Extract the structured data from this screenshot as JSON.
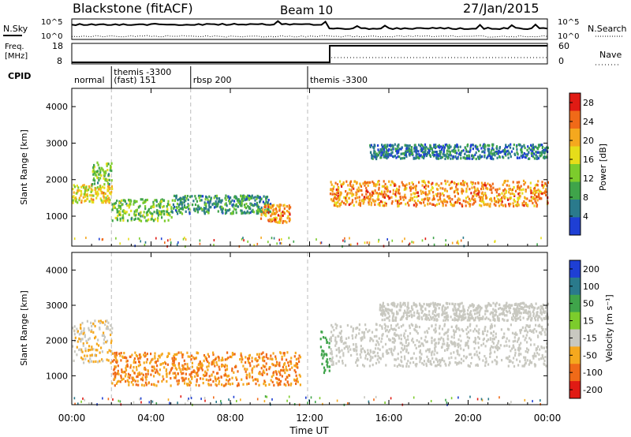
{
  "header": {
    "station": "Blackstone (fitACF)",
    "beam": "Beam 10",
    "date": "27/Jan/2015"
  },
  "noise_panel": {
    "left_label": "N.Sky",
    "right_label": "N.Search",
    "left_ticks": [
      "10^5",
      "10^0"
    ],
    "right_ticks": [
      "10^5",
      "10^0"
    ]
  },
  "freq_panel": {
    "left_label_1": "Freq.",
    "left_label_2": "[MHz]",
    "right_label": "Nave",
    "left_ticks": [
      "18",
      "8"
    ],
    "right_ticks": [
      "60",
      "0"
    ]
  },
  "cpid": {
    "label": "CPID",
    "segments": [
      {
        "name": "normal",
        "start_hour": 0.0
      },
      {
        "name": "themis -3300\n(fast) 151",
        "start_hour": 2.0
      },
      {
        "name": "rbsp 200",
        "start_hour": 6.0
      },
      {
        "name": "themis -3300",
        "start_hour": 11.9
      }
    ]
  },
  "axes": {
    "xlabel": "Time UT",
    "x_ticks": [
      "00:00",
      "04:00",
      "08:00",
      "12:00",
      "16:00",
      "20:00",
      "00:00"
    ],
    "y_ticks": [
      "1000",
      "2000",
      "3000",
      "4000"
    ]
  },
  "chart_data": [
    {
      "type": "heatmap",
      "panel": "power",
      "ylabel": "Slant Range [km]",
      "xlim_hours": [
        0,
        24
      ],
      "ylim_km": [
        180,
        4500
      ],
      "colorbar": {
        "label": "Power [dB]",
        "ticks": [
          "28",
          "24",
          "20",
          "16",
          "12",
          "8",
          "4"
        ],
        "tick_values": [
          28,
          24,
          20,
          16,
          12,
          8,
          4
        ],
        "range": [
          0,
          30
        ],
        "colors": [
          "#1e3fd4",
          "#2a7a8c",
          "#3fa44a",
          "#7ccc2c",
          "#e6dd1a",
          "#f5a81e",
          "#f06a18",
          "#e01b14"
        ]
      },
      "echo_regions": [
        {
          "t": [
            0.0,
            2.0
          ],
          "range_km": [
            1400,
            1900
          ],
          "power_db": 18
        },
        {
          "t": [
            1.0,
            2.0
          ],
          "range_km": [
            1900,
            2500
          ],
          "power_db": 12
        },
        {
          "t": [
            2.0,
            5.0
          ],
          "range_km": [
            900,
            1500
          ],
          "power_db": 12
        },
        {
          "t": [
            5.0,
            10.0
          ],
          "range_km": [
            1100,
            1600
          ],
          "power_db": 8
        },
        {
          "t": [
            9.5,
            11.0
          ],
          "range_km": [
            850,
            1350
          ],
          "power_db": 22
        },
        {
          "t": [
            13.0,
            24.0
          ],
          "range_km": [
            1300,
            2000
          ],
          "power_db": 22
        },
        {
          "t": [
            15.0,
            24.0
          ],
          "range_km": [
            2600,
            3000
          ],
          "power_db": 6
        }
      ]
    },
    {
      "type": "heatmap",
      "panel": "velocity",
      "ylabel": "Slant Range [km]",
      "xlim_hours": [
        0,
        24
      ],
      "ylim_km": [
        180,
        4500
      ],
      "colorbar": {
        "label": "Velocity [m s⁻¹]",
        "ticks": [
          "200",
          "100",
          "50",
          "15",
          "-15",
          "-50",
          "-100",
          "-200"
        ],
        "colors": [
          "#1e3fd4",
          "#2a7a8c",
          "#3fa44a",
          "#7ccc2c",
          "#c8c8c0",
          "#f5a81e",
          "#f06a18",
          "#e01b14"
        ]
      },
      "echo_regions": [
        {
          "t": [
            0.0,
            2.0
          ],
          "range_km": [
            1400,
            2600
          ],
          "velocity": -15
        },
        {
          "t": [
            2.0,
            11.5
          ],
          "range_km": [
            750,
            1700
          ],
          "velocity": -50
        },
        {
          "t": [
            12.5,
            13.0
          ],
          "range_km": [
            1000,
            2300
          ],
          "velocity": 50
        },
        {
          "t": [
            13.0,
            24.0
          ],
          "range_km": [
            1300,
            2500
          ],
          "velocity": 0
        },
        {
          "t": [
            15.5,
            24.0
          ],
          "range_km": [
            2600,
            3100
          ],
          "velocity": 0
        }
      ]
    }
  ]
}
